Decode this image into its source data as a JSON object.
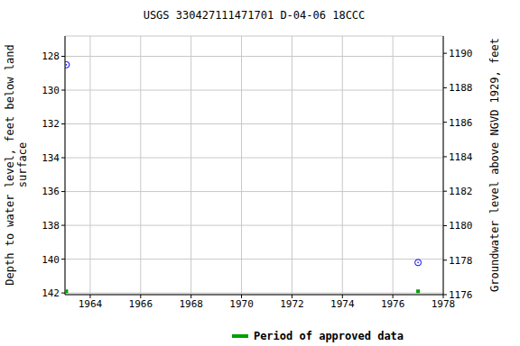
{
  "chart_data": {
    "type": "scatter",
    "title": "USGS 330427111471701 D-04-06 18CCC",
    "x_label": null,
    "y_label": "Depth to water level, feet below land surface",
    "y2_label": "Groundwater level above NGVD 1929, feet",
    "xlim": [
      1963.0,
      1978.0
    ],
    "xticks": [
      1964,
      1966,
      1968,
      1970,
      1972,
      1974,
      1976,
      1978
    ],
    "ylim": [
      126.8,
      142.1
    ],
    "yticks": [
      128,
      130,
      132,
      134,
      136,
      138,
      140,
      142
    ],
    "y2lim": [
      1176.0,
      1191.0
    ],
    "y2ticks": [
      1176,
      1178,
      1180,
      1182,
      1184,
      1186,
      1188,
      1190
    ],
    "grid": true,
    "legend": "bottom",
    "series": [
      {
        "color": "#0000ff",
        "marker": "circle",
        "x": [
          1963.05,
          1977.0
        ],
        "values": [
          128.5,
          140.2
        ]
      },
      {
        "name": "Period of approved data",
        "color": "#00a000",
        "marker": "square",
        "x": [
          1963.05,
          1977.0
        ],
        "values": [
          141.9,
          141.9
        ]
      }
    ]
  }
}
